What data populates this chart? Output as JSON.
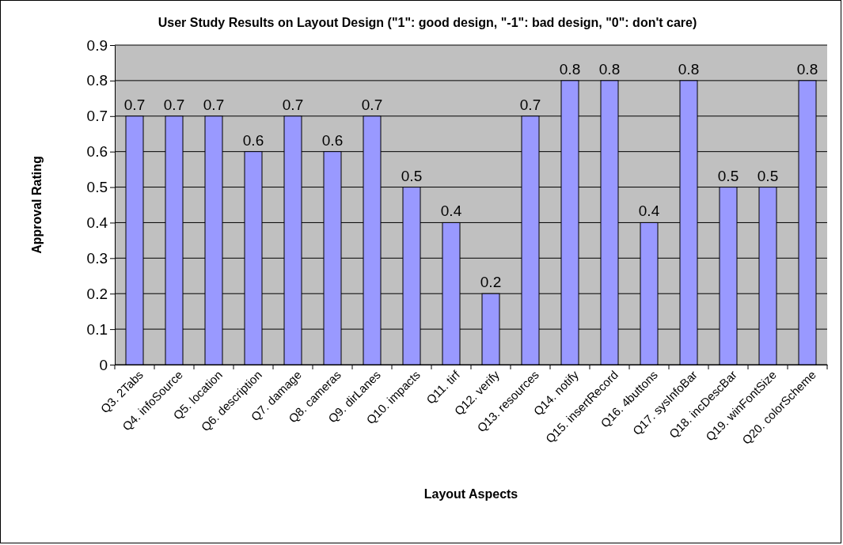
{
  "chart_data": {
    "type": "bar",
    "title": "User Study Results on Layout Design (\"1\": good design, \"-1\": bad design, \"0\": don't care)",
    "xlabel": "Layout Aspects",
    "ylabel": "Approval Rating",
    "categories": [
      "Q3. 2Tabs",
      "Q4. infoSource",
      "Q5. location",
      "Q6. description",
      "Q7. damage",
      "Q8. cameras",
      "Q9. dirLanes",
      "Q10. impacts",
      "Q11. tirf",
      "Q12. verify",
      "Q13. resources",
      "Q14. notify",
      "Q15. insertRecord",
      "Q16. 4buttons",
      "Q17. sysInfoBar",
      "Q18. incDescBar",
      "Q19. winFontSize",
      "Q20. colorScheme"
    ],
    "values": [
      0.7,
      0.7,
      0.7,
      0.6,
      0.7,
      0.6,
      0.7,
      0.5,
      0.4,
      0.2,
      0.7,
      0.8,
      0.8,
      0.4,
      0.8,
      0.5,
      0.5,
      0.8
    ],
    "color": "#9999ff",
    "ylim": [
      0,
      0.9
    ],
    "yticks": [
      0,
      0.1,
      0.2,
      0.3,
      0.4,
      0.5,
      0.6,
      0.7,
      0.8,
      0.9
    ],
    "grid": "y",
    "data_labels": true
  }
}
